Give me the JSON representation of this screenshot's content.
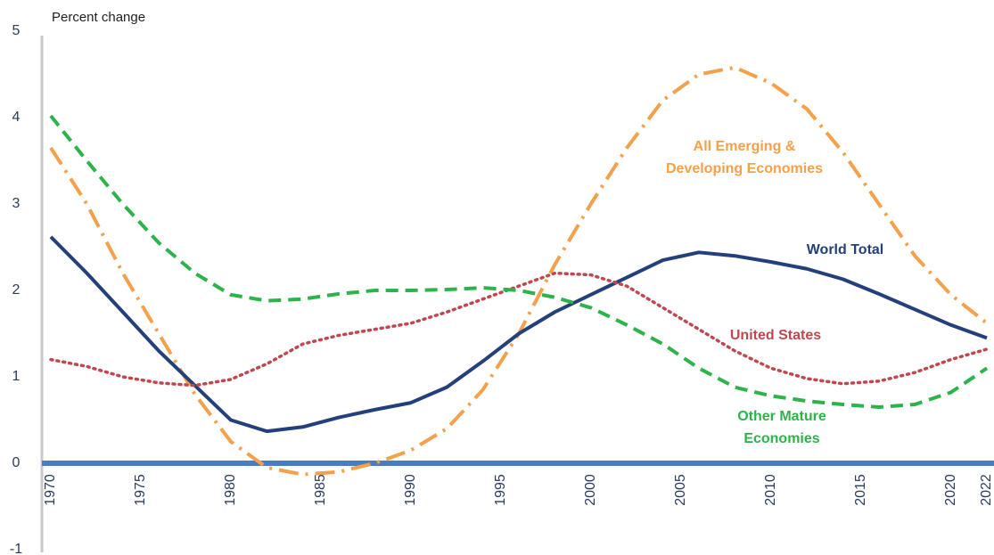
{
  "chart_data": {
    "type": "line",
    "y_label": "Percent change",
    "x": [
      1970,
      1972,
      1974,
      1976,
      1978,
      1980,
      1982,
      1984,
      1986,
      1988,
      1990,
      1992,
      1994,
      1996,
      1998,
      2000,
      2002,
      2004,
      2006,
      2008,
      2010,
      2012,
      2014,
      2016,
      2018,
      2020,
      2022
    ],
    "xlim": [
      1970,
      2022
    ],
    "xticks": [
      1970,
      1975,
      1980,
      1985,
      1990,
      1995,
      2000,
      2005,
      2010,
      2015,
      2020,
      2022
    ],
    "ylim": [
      -1,
      5
    ],
    "yticks": [
      -1,
      0,
      1,
      2,
      3,
      4,
      5
    ],
    "grid": false,
    "series": [
      {
        "label": [
          "All Emerging &",
          "Developing Economies"
        ],
        "color": "#f5a04a",
        "dash": "dashdot",
        "values": [
          3.65,
          3.0,
          2.2,
          1.5,
          0.8,
          0.25,
          -0.05,
          -0.13,
          -0.1,
          0,
          0.15,
          0.4,
          0.85,
          1.5,
          2.3,
          3.0,
          3.65,
          4.2,
          4.5,
          4.58,
          4.4,
          4.1,
          3.6,
          3.0,
          2.4,
          1.95,
          1.62
        ]
      },
      {
        "label": [
          "World Total"
        ],
        "color": "#23407a",
        "dash": "solid",
        "values": [
          2.62,
          2.2,
          1.75,
          1.3,
          0.9,
          0.5,
          0.37,
          0.42,
          0.53,
          0.62,
          0.7,
          0.88,
          1.18,
          1.5,
          1.75,
          1.95,
          2.15,
          2.35,
          2.44,
          2.4,
          2.33,
          2.25,
          2.13,
          1.96,
          1.78,
          1.6,
          1.45
        ]
      },
      {
        "label": [
          "United States"
        ],
        "color": "#c0474f",
        "dash": "dotted",
        "values": [
          1.2,
          1.12,
          1.0,
          0.93,
          0.9,
          0.97,
          1.15,
          1.38,
          1.48,
          1.55,
          1.62,
          1.75,
          1.9,
          2.05,
          2.2,
          2.18,
          2.05,
          1.8,
          1.55,
          1.3,
          1.1,
          0.98,
          0.92,
          0.95,
          1.05,
          1.2,
          1.32
        ]
      },
      {
        "label": [
          "Other Mature",
          "Economies"
        ],
        "color": "#2db34a",
        "dash": "dashed",
        "values": [
          4.02,
          3.5,
          3.0,
          2.55,
          2.2,
          1.95,
          1.88,
          1.9,
          1.96,
          2.0,
          2.0,
          2.01,
          2.03,
          2.0,
          1.92,
          1.8,
          1.6,
          1.38,
          1.1,
          0.88,
          0.78,
          0.72,
          0.68,
          0.65,
          0.68,
          0.82,
          1.1
        ]
      }
    ]
  }
}
